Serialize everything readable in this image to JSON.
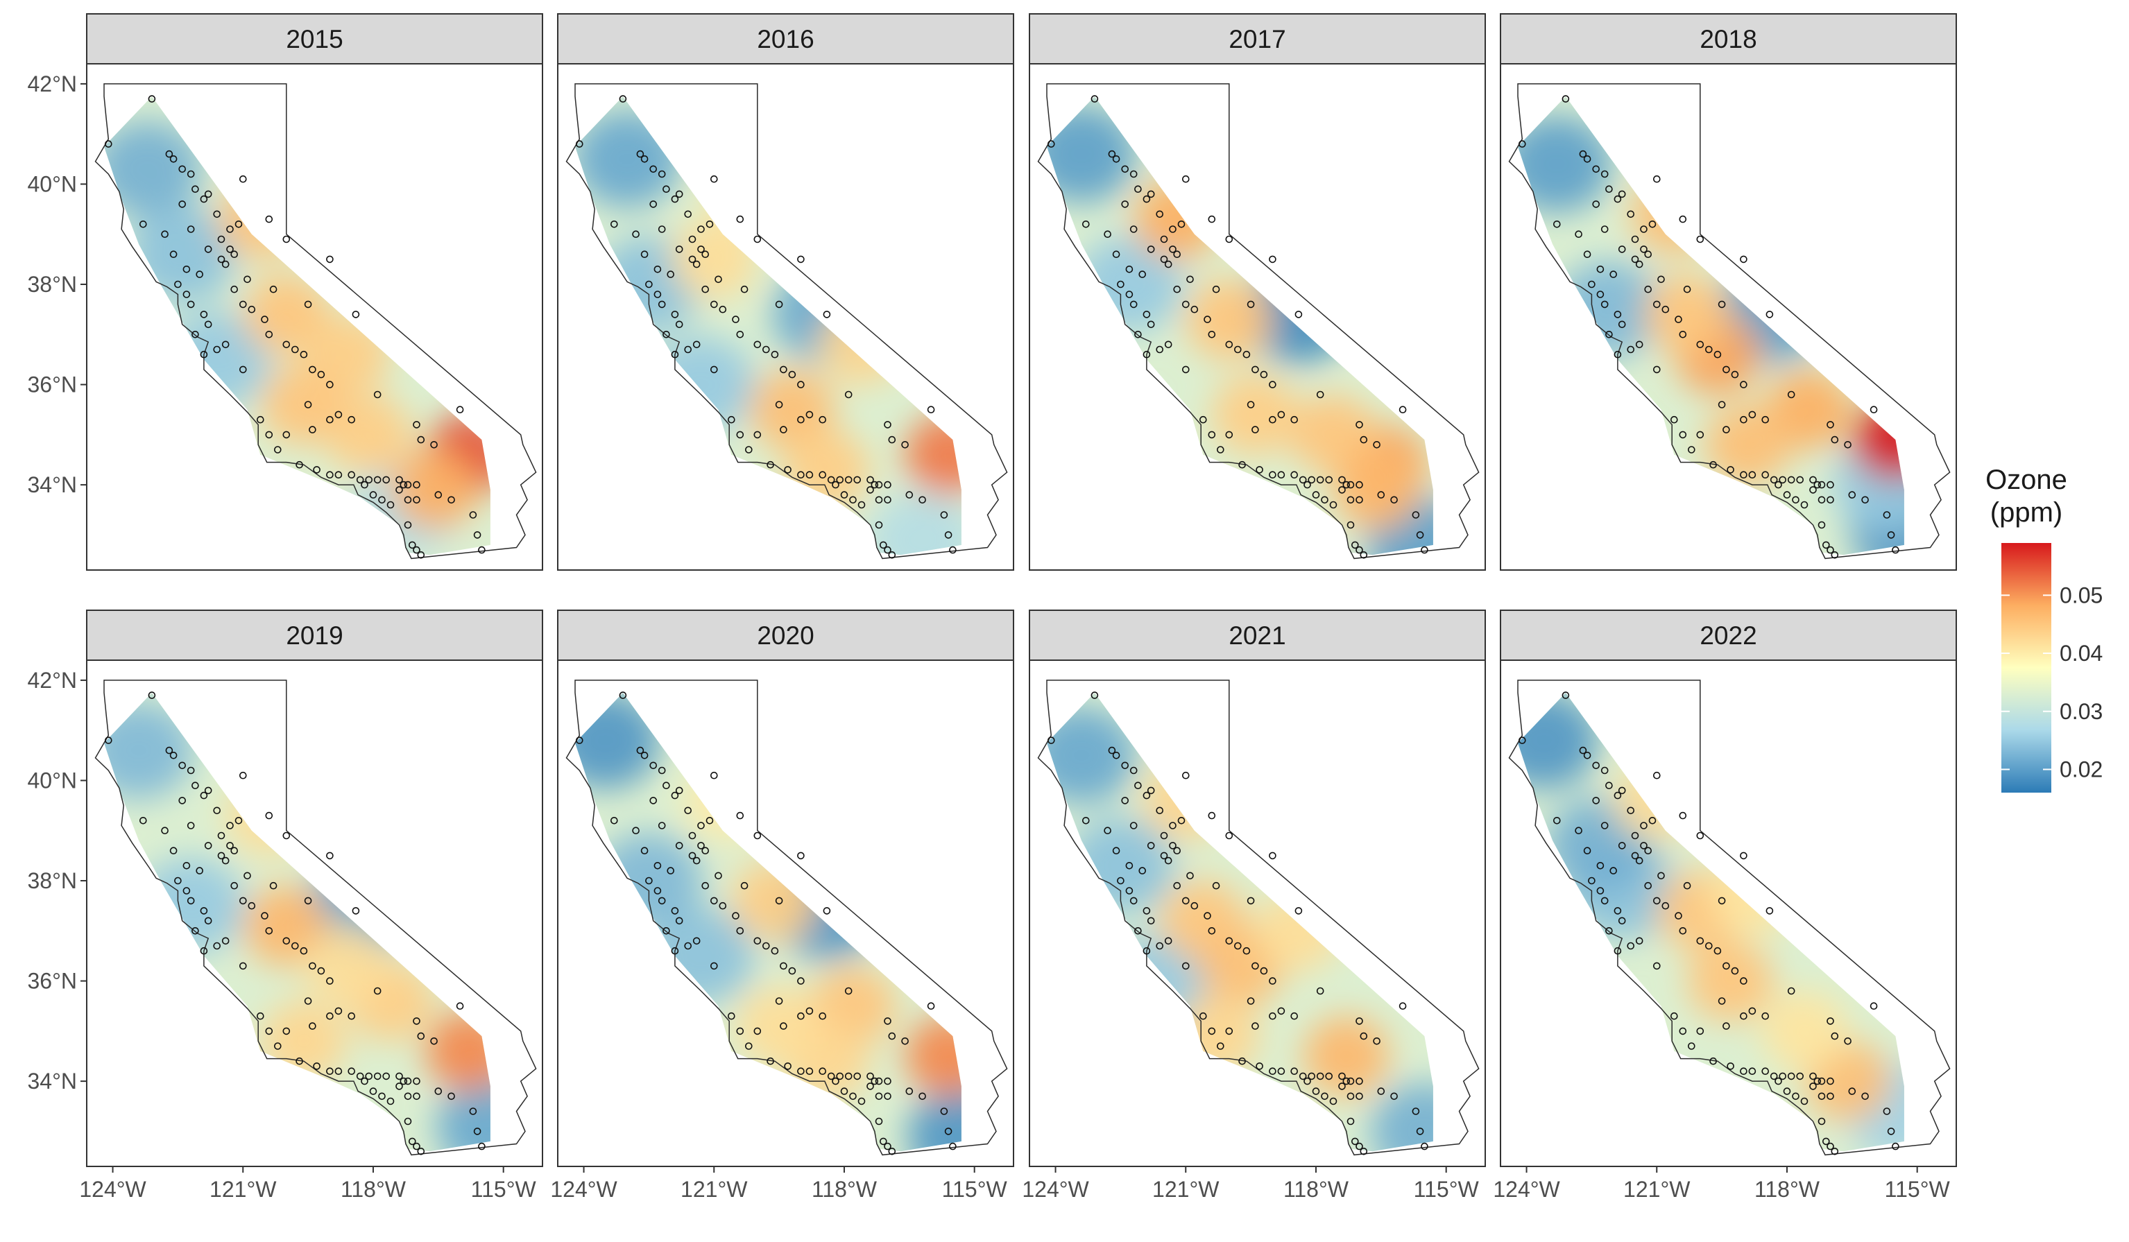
{
  "chart_data": {
    "type": "heatmap",
    "subtype": "faceted-map",
    "facets": [
      {
        "label": "2015",
        "hotspots": [
          [
            -115.8,
            34.6,
            0.055
          ],
          [
            -120.0,
            37.4,
            0.045
          ],
          [
            -120.6,
            39.3,
            0.045
          ],
          [
            -118.6,
            36.6,
            0.044
          ],
          [
            -116.6,
            33.9,
            0.048
          ],
          [
            -118.1,
            35.0,
            0.044
          ],
          [
            -119.6,
            35.6,
            0.045
          ]
        ],
        "coldspots": [
          [
            -123.2,
            40.3,
            0.022
          ],
          [
            -122.4,
            38.6,
            0.024
          ],
          [
            -121.6,
            36.5,
            0.025
          ],
          [
            -117.2,
            33.6,
            0.027
          ]
        ]
      },
      {
        "label": "2016",
        "hotspots": [
          [
            -115.6,
            34.6,
            0.052
          ],
          [
            -119.2,
            35.5,
            0.046
          ],
          [
            -121.0,
            38.5,
            0.042
          ],
          [
            -117.6,
            36.8,
            0.043
          ],
          [
            -118.4,
            34.3,
            0.044
          ],
          [
            -120.2,
            39.9,
            0.041
          ]
        ],
        "coldspots": [
          [
            -123.0,
            40.5,
            0.021
          ],
          [
            -122.5,
            38.0,
            0.024
          ],
          [
            -118.4,
            37.4,
            0.021
          ],
          [
            -121.3,
            36.0,
            0.025
          ],
          [
            -116.2,
            32.9,
            0.028
          ]
        ]
      },
      {
        "label": "2017",
        "hotspots": [
          [
            -116.4,
            34.4,
            0.049
          ],
          [
            -121.2,
            39.3,
            0.048
          ],
          [
            -120.0,
            37.3,
            0.045
          ],
          [
            -119.4,
            35.4,
            0.044
          ],
          [
            -117.6,
            35.0,
            0.045
          ],
          [
            -116.6,
            33.9,
            0.047
          ]
        ],
        "coldspots": [
          [
            -123.4,
            40.6,
            0.02
          ],
          [
            -118.4,
            37.4,
            0.018
          ],
          [
            -122.3,
            38.0,
            0.025
          ],
          [
            -115.6,
            32.8,
            0.02
          ]
        ]
      },
      {
        "label": "2018",
        "hotspots": [
          [
            -115.5,
            34.9,
            0.06
          ],
          [
            -119.6,
            36.6,
            0.049
          ],
          [
            -120.6,
            39.4,
            0.046
          ],
          [
            -117.5,
            35.5,
            0.048
          ],
          [
            -118.9,
            34.8,
            0.046
          ],
          [
            -120.3,
            37.4,
            0.045
          ]
        ],
        "coldspots": [
          [
            -123.3,
            40.4,
            0.02
          ],
          [
            -118.4,
            37.4,
            0.02
          ],
          [
            -115.3,
            33.1,
            0.019
          ],
          [
            -122.1,
            37.5,
            0.023
          ],
          [
            -115.7,
            34.0,
            0.025
          ]
        ]
      },
      {
        "label": "2019",
        "hotspots": [
          [
            -115.8,
            34.6,
            0.051
          ],
          [
            -120.0,
            37.1,
            0.047
          ],
          [
            -120.4,
            39.3,
            0.042
          ],
          [
            -117.6,
            35.6,
            0.044
          ],
          [
            -119.6,
            34.8,
            0.043
          ],
          [
            -118.6,
            36.3,
            0.042
          ]
        ],
        "coldspots": [
          [
            -123.4,
            40.6,
            0.023
          ],
          [
            -118.4,
            37.4,
            0.021
          ],
          [
            -115.3,
            33.1,
            0.021
          ],
          [
            -122.2,
            37.5,
            0.025
          ]
        ]
      },
      {
        "label": "2020",
        "hotspots": [
          [
            -115.6,
            34.5,
            0.051
          ],
          [
            -119.6,
            37.6,
            0.044
          ],
          [
            -117.8,
            35.5,
            0.045
          ],
          [
            -118.4,
            34.4,
            0.043
          ],
          [
            -120.7,
            39.6,
            0.04
          ],
          [
            -119.5,
            35.1,
            0.042
          ]
        ],
        "coldspots": [
          [
            -123.5,
            40.8,
            0.019
          ],
          [
            -118.4,
            37.4,
            0.019
          ],
          [
            -115.3,
            32.9,
            0.019
          ],
          [
            -121.3,
            36.5,
            0.024
          ],
          [
            -122.5,
            38.0,
            0.023
          ]
        ]
      },
      {
        "label": "2021",
        "hotspots": [
          [
            -120.6,
            37.2,
            0.045
          ],
          [
            -119.7,
            36.3,
            0.046
          ],
          [
            -117.3,
            34.5,
            0.047
          ],
          [
            -121.0,
            39.6,
            0.043
          ],
          [
            -120.3,
            34.9,
            0.043
          ],
          [
            -118.4,
            37.0,
            0.042
          ]
        ],
        "coldspots": [
          [
            -123.4,
            40.5,
            0.021
          ],
          [
            -115.5,
            33.0,
            0.022
          ],
          [
            -121.6,
            36.0,
            0.025
          ],
          [
            -122.5,
            38.3,
            0.024
          ]
        ]
      },
      {
        "label": "2022",
        "hotspots": [
          [
            -120.0,
            37.4,
            0.045
          ],
          [
            -119.3,
            36.0,
            0.045
          ],
          [
            -116.6,
            34.0,
            0.046
          ],
          [
            -121.0,
            39.6,
            0.042
          ],
          [
            -117.6,
            35.0,
            0.041
          ],
          [
            -118.8,
            37.7,
            0.041
          ]
        ],
        "coldspots": [
          [
            -123.6,
            40.8,
            0.019
          ],
          [
            -121.8,
            37.8,
            0.024
          ],
          [
            -122.3,
            38.7,
            0.022
          ],
          [
            -115.4,
            33.4,
            0.026
          ]
        ]
      }
    ],
    "x_ticks": [
      "124°W",
      "121°W",
      "118°W",
      "115°W"
    ],
    "x_tick_values": [
      -124,
      -121,
      -118,
      -115
    ],
    "y_ticks": [
      "42°N",
      "40°N",
      "38°N",
      "36°N",
      "34°N"
    ],
    "y_tick_values": [
      42,
      40,
      38,
      36,
      34
    ],
    "xlim": [
      -124.6,
      -114.1
    ],
    "ylim": [
      32.3,
      42.4
    ],
    "legend": {
      "title_line1": "Ozone",
      "title_line2": "(ppm)",
      "placement": "right",
      "ticks": [
        "0.05",
        "0.04",
        "0.03",
        "0.02"
      ],
      "tick_values": [
        0.05,
        0.04,
        0.03,
        0.02
      ],
      "range": [
        0.016,
        0.059
      ],
      "colors": [
        "#2c7bb6",
        "#abd9e9",
        "#ffffbf",
        "#fdae61",
        "#d7191c"
      ]
    },
    "grid": false,
    "points_style": "open-circle",
    "monitoring_sites_lonlat": [
      [
        -124.1,
        40.8
      ],
      [
        -123.1,
        41.7
      ],
      [
        -122.7,
        40.6
      ],
      [
        -122.6,
        40.5
      ],
      [
        -122.4,
        40.3
      ],
      [
        -122.2,
        40.2
      ],
      [
        -121.9,
        39.7
      ],
      [
        -121.8,
        39.8
      ],
      [
        -122.4,
        39.6
      ],
      [
        -122.2,
        39.1
      ],
      [
        -121.6,
        39.4
      ],
      [
        -121.3,
        39.1
      ],
      [
        -121.1,
        39.2
      ],
      [
        -121.5,
        38.9
      ],
      [
        -121.3,
        38.7
      ],
      [
        -121.2,
        38.6
      ],
      [
        -121.5,
        38.5
      ],
      [
        -121.4,
        38.4
      ],
      [
        -121.8,
        38.7
      ],
      [
        -122.0,
        38.2
      ],
      [
        -122.3,
        38.3
      ],
      [
        -122.5,
        38.0
      ],
      [
        -122.3,
        37.8
      ],
      [
        -122.2,
        37.6
      ],
      [
        -121.9,
        37.4
      ],
      [
        -121.8,
        37.2
      ],
      [
        -122.1,
        37.0
      ],
      [
        -121.9,
        36.6
      ],
      [
        -121.6,
        36.7
      ],
      [
        -121.4,
        36.8
      ],
      [
        -121.0,
        37.6
      ],
      [
        -120.8,
        37.5
      ],
      [
        -120.5,
        37.3
      ],
      [
        -120.4,
        37.0
      ],
      [
        -120.0,
        36.8
      ],
      [
        -119.8,
        36.7
      ],
      [
        -119.6,
        36.6
      ],
      [
        -119.4,
        36.3
      ],
      [
        -119.2,
        36.2
      ],
      [
        -119.0,
        36.0
      ],
      [
        -118.8,
        35.4
      ],
      [
        -119.0,
        35.3
      ],
      [
        -119.4,
        35.1
      ],
      [
        -120.6,
        35.3
      ],
      [
        -120.4,
        35.0
      ],
      [
        -120.2,
        34.7
      ],
      [
        -119.7,
        34.4
      ],
      [
        -119.3,
        34.3
      ],
      [
        -119.0,
        34.2
      ],
      [
        -118.8,
        34.2
      ],
      [
        -118.5,
        34.2
      ],
      [
        -118.3,
        34.1
      ],
      [
        -118.2,
        34.0
      ],
      [
        -118.1,
        34.1
      ],
      [
        -117.9,
        34.1
      ],
      [
        -117.7,
        34.1
      ],
      [
        -117.4,
        34.1
      ],
      [
        -117.3,
        34.0
      ],
      [
        -117.2,
        34.0
      ],
      [
        -117.0,
        34.0
      ],
      [
        -117.4,
        33.9
      ],
      [
        -118.0,
        33.8
      ],
      [
        -117.8,
        33.7
      ],
      [
        -117.6,
        33.6
      ],
      [
        -117.2,
        33.7
      ],
      [
        -117.0,
        33.7
      ],
      [
        -116.5,
        33.8
      ],
      [
        -116.2,
        33.7
      ],
      [
        -117.2,
        33.2
      ],
      [
        -117.1,
        32.8
      ],
      [
        -117.0,
        32.7
      ],
      [
        -116.9,
        32.6
      ],
      [
        -115.5,
        32.7
      ],
      [
        -115.6,
        33.0
      ],
      [
        -115.7,
        33.4
      ],
      [
        -116.9,
        34.9
      ],
      [
        -117.0,
        35.2
      ],
      [
        -117.9,
        35.8
      ],
      [
        -118.4,
        37.4
      ],
      [
        -119.0,
        38.5
      ],
      [
        -120.0,
        38.9
      ],
      [
        -120.4,
        39.3
      ],
      [
        -121.0,
        40.1
      ],
      [
        -122.1,
        39.9
      ],
      [
        -119.5,
        37.6
      ],
      [
        -120.3,
        37.9
      ],
      [
        -118.5,
        35.3
      ],
      [
        -119.5,
        35.6
      ],
      [
        -120.0,
        35.0
      ],
      [
        -121.0,
        36.3
      ],
      [
        -122.8,
        39.0
      ],
      [
        -123.3,
        39.2
      ],
      [
        -122.6,
        38.6
      ],
      [
        -121.2,
        37.9
      ],
      [
        -120.9,
        38.1
      ],
      [
        -116.6,
        34.8
      ],
      [
        -116.0,
        35.5
      ]
    ]
  }
}
